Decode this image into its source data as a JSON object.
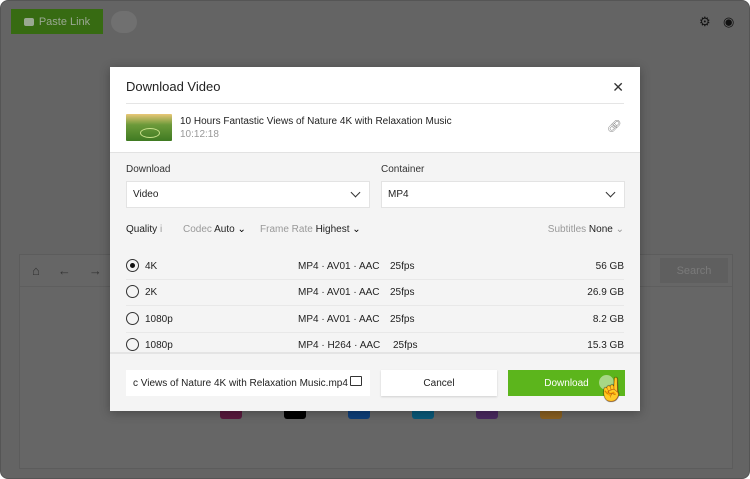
{
  "app": {
    "paste_link": "Paste Link",
    "search": "Search",
    "icons": [
      "youtube-icon",
      "bulb-icon",
      "gear-icon",
      "user-icon",
      "home-icon",
      "back-icon",
      "forward-icon"
    ]
  },
  "modal": {
    "title": "Download Video",
    "video": {
      "title": "10 Hours Fantastic Views of Nature 4K with Relaxation Music",
      "duration": "10:12:18"
    },
    "download_label": "Download",
    "download_value": "Video",
    "container_label": "Container",
    "container_value": "MP4",
    "filters": {
      "quality": "Quality",
      "quality_info": "i",
      "codec_label": "Codec",
      "codec_value": "Auto",
      "framerate_label": "Frame Rate",
      "framerate_value": "Highest",
      "subtitles_label": "Subtitles",
      "subtitles_value": "None"
    },
    "rows": [
      {
        "quality": "4K",
        "format": "MP4 · AV01 · AAC",
        "fps": "25fps",
        "size": "56 GB",
        "selected": true
      },
      {
        "quality": "2K",
        "format": "MP4 · AV01 · AAC",
        "fps": "25fps",
        "size": "26.9 GB",
        "selected": false
      },
      {
        "quality": "1080p",
        "format": "MP4 · AV01 · AAC",
        "fps": "25fps",
        "size": "8.2 GB",
        "selected": false
      },
      {
        "quality": "1080p",
        "format": "MP4 · H264 · AAC",
        "fps": "25fps",
        "size": "15.3 GB",
        "selected": false
      }
    ],
    "filename": "c Views of Nature 4K with Relaxation Music.mp4",
    "cancel": "Cancel",
    "download_button": "Download"
  },
  "colors": {
    "accent": "#5cb51c"
  }
}
